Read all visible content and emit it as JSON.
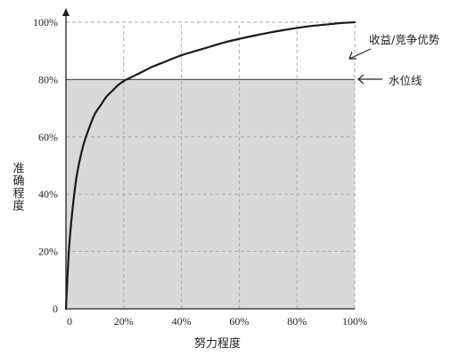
{
  "chart_data": {
    "type": "line",
    "title": "",
    "xlabel": "努力程度",
    "ylabel": "准确程度",
    "xlim": [
      0,
      100
    ],
    "ylim": [
      0,
      100
    ],
    "x_ticks": [
      "0",
      "20%",
      "40%",
      "60%",
      "80%",
      "100%"
    ],
    "y_ticks": [
      "0",
      "20%",
      "40%",
      "60%",
      "80%",
      "100%"
    ],
    "grid": true,
    "series": [
      {
        "x": [
          0,
          1,
          2,
          3,
          4,
          6,
          8,
          10,
          12,
          14,
          16,
          18,
          20,
          22,
          24,
          26,
          28,
          30,
          35,
          40,
          45,
          50,
          55,
          60,
          65,
          70,
          75,
          80,
          85,
          90,
          95,
          100
        ],
        "y": [
          0,
          20,
          32,
          41,
          48,
          57,
          63,
          68,
          71,
          74,
          76,
          78,
          79.5,
          80.5,
          81.5,
          82.5,
          83.5,
          84.5,
          86.5,
          88.5,
          90,
          91.5,
          93,
          94.2,
          95.3,
          96.3,
          97.2,
          98,
          98.7,
          99.2,
          99.7,
          100
        ],
        "color": "#1a1a1a"
      }
    ],
    "water_line": 80,
    "shade_color": "#d9d9d9",
    "annotations": [
      {
        "text": "收益/竞争优势"
      },
      {
        "text": "水位线"
      }
    ]
  }
}
